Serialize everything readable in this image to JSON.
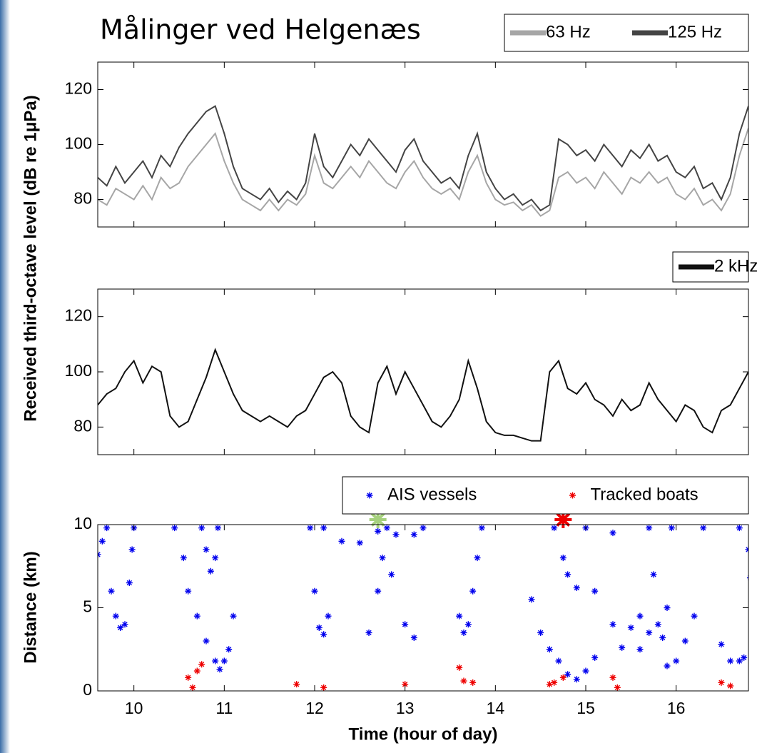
{
  "chart_data": [
    {
      "type": "line",
      "title": "Målinger ved Helgenæs",
      "ylabel": "Received third-octave level (dB re 1μPa)",
      "x": [
        9.6,
        9.7,
        9.8,
        9.9,
        10.0,
        10.1,
        10.2,
        10.3,
        10.4,
        10.5,
        10.6,
        10.7,
        10.8,
        10.9,
        11.0,
        11.1,
        11.2,
        11.3,
        11.4,
        11.5,
        11.6,
        11.7,
        11.8,
        11.9,
        12.0,
        12.1,
        12.2,
        12.3,
        12.4,
        12.5,
        12.6,
        12.7,
        12.8,
        12.9,
        13.0,
        13.1,
        13.2,
        13.3,
        13.4,
        13.5,
        13.6,
        13.7,
        13.8,
        13.9,
        14.0,
        14.1,
        14.2,
        14.3,
        14.4,
        14.5,
        14.6,
        14.7,
        14.8,
        14.9,
        15.0,
        15.1,
        15.2,
        15.3,
        15.4,
        15.5,
        15.6,
        15.7,
        15.8,
        15.9,
        16.0,
        16.1,
        16.2,
        16.3,
        16.4,
        16.5,
        16.6,
        16.7,
        16.8
      ],
      "series": [
        {
          "name": "63 Hz",
          "color": "#a6a6a6",
          "values": [
            80,
            78,
            84,
            82,
            80,
            85,
            80,
            88,
            84,
            86,
            92,
            96,
            100,
            104,
            94,
            86,
            80,
            78,
            76,
            80,
            76,
            80,
            78,
            82,
            96,
            86,
            84,
            88,
            92,
            88,
            94,
            90,
            86,
            84,
            90,
            94,
            88,
            84,
            82,
            84,
            80,
            90,
            96,
            86,
            80,
            78,
            79,
            76,
            78,
            74,
            76,
            88,
            90,
            86,
            88,
            84,
            90,
            86,
            82,
            88,
            86,
            90,
            86,
            88,
            82,
            80,
            84,
            78,
            80,
            76,
            82,
            96,
            106
          ]
        },
        {
          "name": "125 Hz",
          "color": "#444444",
          "values": [
            88,
            85,
            92,
            86,
            90,
            94,
            88,
            96,
            92,
            99,
            104,
            108,
            112,
            114,
            104,
            92,
            84,
            82,
            80,
            84,
            79,
            83,
            80,
            86,
            104,
            92,
            88,
            94,
            100,
            96,
            102,
            98,
            94,
            90,
            98,
            102,
            94,
            90,
            86,
            88,
            84,
            96,
            104,
            90,
            84,
            80,
            82,
            78,
            80,
            76,
            78,
            102,
            100,
            96,
            98,
            94,
            100,
            96,
            92,
            98,
            95,
            100,
            94,
            96,
            90,
            88,
            92,
            84,
            86,
            80,
            88,
            104,
            114
          ]
        }
      ],
      "xlim": [
        9.6,
        16.8
      ],
      "xticks": [
        10,
        11,
        12,
        13,
        14,
        15,
        16
      ],
      "show_xticklabels": false,
      "ylim": [
        70,
        130
      ],
      "yticks": [
        80,
        100,
        120
      ]
    },
    {
      "type": "line",
      "x": [
        9.6,
        9.7,
        9.8,
        9.9,
        10.0,
        10.1,
        10.2,
        10.3,
        10.4,
        10.5,
        10.6,
        10.7,
        10.8,
        10.9,
        11.0,
        11.1,
        11.2,
        11.3,
        11.4,
        11.5,
        11.6,
        11.7,
        11.8,
        11.9,
        12.0,
        12.1,
        12.2,
        12.3,
        12.4,
        12.5,
        12.6,
        12.7,
        12.8,
        12.9,
        13.0,
        13.1,
        13.2,
        13.3,
        13.4,
        13.5,
        13.6,
        13.7,
        13.8,
        13.9,
        14.0,
        14.1,
        14.2,
        14.3,
        14.4,
        14.5,
        14.6,
        14.7,
        14.8,
        14.9,
        15.0,
        15.1,
        15.2,
        15.3,
        15.4,
        15.5,
        15.6,
        15.7,
        15.8,
        15.9,
        16.0,
        16.1,
        16.2,
        16.3,
        16.4,
        16.5,
        16.6,
        16.7,
        16.8
      ],
      "series": [
        {
          "name": "2 kHz",
          "color": "#111111",
          "values": [
            88,
            92,
            94,
            100,
            104,
            96,
            102,
            100,
            84,
            80,
            82,
            90,
            98,
            108,
            100,
            92,
            86,
            84,
            82,
            84,
            82,
            80,
            84,
            86,
            92,
            98,
            100,
            96,
            84,
            80,
            78,
            96,
            102,
            92,
            100,
            94,
            88,
            82,
            80,
            84,
            90,
            104,
            94,
            82,
            78,
            77,
            77,
            76,
            75,
            75,
            100,
            104,
            94,
            92,
            96,
            90,
            88,
            84,
            90,
            86,
            88,
            96,
            90,
            86,
            82,
            88,
            86,
            80,
            78,
            86,
            88,
            94,
            100
          ]
        }
      ],
      "xlim": [
        9.6,
        16.8
      ],
      "xticks": [
        10,
        11,
        12,
        13,
        14,
        15,
        16
      ],
      "show_xticklabels": false,
      "ylim": [
        70,
        130
      ],
      "yticks": [
        80,
        100,
        120
      ]
    },
    {
      "type": "scatter",
      "ylabel": "Distance (km)",
      "xlabel": "Time (hour of day)",
      "series": [
        {
          "name": "AIS vessels",
          "color": "#0000ee",
          "x": [
            9.6,
            9.65,
            9.7,
            9.75,
            9.8,
            9.85,
            9.9,
            9.95,
            9.98,
            10.0,
            10.45,
            10.55,
            10.6,
            10.7,
            10.8,
            10.9,
            10.95,
            11.0,
            11.05,
            11.1,
            10.75,
            10.8,
            10.85,
            10.9,
            10.93,
            11.95,
            12.0,
            12.05,
            12.1,
            12.15,
            12.1,
            12.3,
            12.5,
            12.7,
            12.8,
            12.9,
            13.1,
            13.2,
            12.6,
            12.7,
            12.75,
            12.85,
            13.0,
            13.1,
            13.6,
            13.65,
            13.7,
            13.75,
            13.8,
            13.85,
            14.4,
            14.5,
            14.6,
            14.7,
            14.8,
            14.9,
            15.0,
            15.1,
            14.65,
            14.75,
            14.8,
            14.9,
            15.1,
            15.3,
            15.5,
            15.6,
            15.0,
            15.3,
            15.4,
            15.6,
            15.7,
            15.7,
            15.75,
            15.8,
            15.85,
            15.9,
            15.95,
            16.0,
            15.9,
            16.1,
            16.2,
            16.3,
            16.5,
            16.6,
            16.7,
            16.75,
            16.8,
            16.7,
            16.82
          ],
          "values": [
            8.2,
            9,
            9.8,
            6,
            4.5,
            3.8,
            4,
            6.5,
            8.5,
            9.8,
            9.8,
            8,
            6,
            4.5,
            3,
            1.8,
            1.3,
            1.8,
            2.5,
            4.5,
            9.8,
            8.5,
            7.2,
            8,
            9.8,
            9.8,
            6,
            3.8,
            3.4,
            4.5,
            9.8,
            9,
            8.9,
            9.6,
            9.8,
            9.4,
            9.4,
            9.8,
            3.5,
            6,
            8,
            7,
            4,
            3.2,
            4.5,
            3.5,
            4,
            6,
            8,
            9.8,
            5.5,
            3.5,
            2.5,
            1.8,
            1,
            0.7,
            1.2,
            2,
            9.8,
            8,
            7,
            6.2,
            6,
            4,
            3.8,
            4.5,
            9.8,
            9.5,
            2.6,
            2.5,
            3.5,
            9.8,
            7,
            4,
            3.2,
            5,
            9.8,
            1.8,
            1.5,
            3,
            4.5,
            9.8,
            2.8,
            1.8,
            1.8,
            2,
            8.5,
            9.8,
            6.8
          ]
        },
        {
          "name": "Tracked boats",
          "color": "#ee0000",
          "x": [
            10.6,
            10.65,
            10.7,
            10.75,
            11.8,
            12.1,
            13.0,
            13.6,
            13.65,
            13.75,
            14.6,
            14.65,
            14.75,
            15.3,
            15.35,
            16.5,
            16.6
          ],
          "values": [
            0.8,
            0.2,
            1.2,
            1.6,
            0.4,
            0.2,
            0.4,
            1.4,
            0.6,
            0.5,
            0.4,
            0.5,
            0.8,
            0.8,
            0.2,
            0.5,
            0.3
          ]
        }
      ],
      "highlights": [
        {
          "x": 12.7,
          "y": 10.3,
          "color": "#a6d17e"
        },
        {
          "x": 14.75,
          "y": 10.3,
          "color": "#ee0000"
        }
      ],
      "xlim": [
        9.6,
        16.8
      ],
      "xticks": [
        10,
        11,
        12,
        13,
        14,
        15,
        16
      ],
      "ylim": [
        0,
        10
      ],
      "yticks": [
        0,
        5,
        10
      ]
    }
  ]
}
